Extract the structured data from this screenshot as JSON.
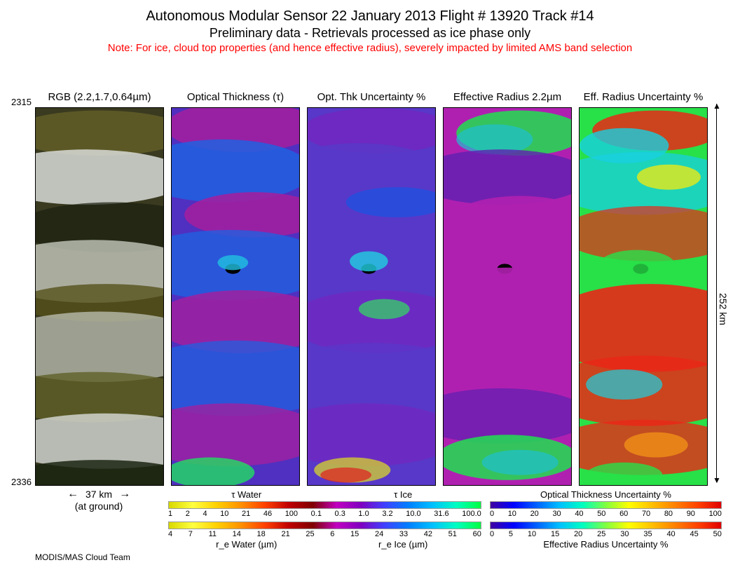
{
  "title": {
    "main": "Autonomous Modular Sensor  22 January 2013  Flight # 13920 Track #14",
    "sub": "Preliminary data - Retrievals processed as ice phase only",
    "note": "Note: For ice, cloud top properties (and hence effective radius), severely impacted by limited AMS band selection"
  },
  "y_axis": {
    "top_tick": "2315",
    "bottom_tick": "2336"
  },
  "width_scale": {
    "label": "37 km",
    "sublabel": "(at ground)"
  },
  "right_scale": {
    "label": "252 km"
  },
  "footer": "MODIS/MAS Cloud Team",
  "panels": [
    {
      "title": "RGB (2.2,1.7,0.64µm)"
    },
    {
      "title": "Optical Thickness (τ)"
    },
    {
      "title": "Opt. Thk Uncertainty %"
    },
    {
      "title": "Effective Radius 2.2µm"
    },
    {
      "title": "Eff. Radius Uncertainty %"
    }
  ],
  "colorbars": {
    "row1": {
      "left": {
        "title_left": "τ Water",
        "title_right": "τ Ice",
        "ticks": [
          "1",
          "2",
          "4",
          "10",
          "21",
          "46",
          "100",
          "0.1",
          "0.3",
          "1.0",
          "3.2",
          "10.0",
          "31.6",
          "100.0"
        ],
        "gradient": "linear-gradient(to right, #d8d800,#ffff40,#ffd000,#ff9000,#ff4000,#c00000,#800000,#c000c0,#8000c0,#4040ff,#0080ff,#00c0ff,#00ffc0,#00ff40)"
      },
      "right": {
        "title_full": "Optical Thickness Uncertainty %",
        "ticks": [
          "0",
          "10",
          "20",
          "30",
          "40",
          "50",
          "60",
          "70",
          "80",
          "90",
          "100"
        ],
        "gradient": "linear-gradient(to right, #4000a0,#0000ff,#0060ff,#00c0ff,#00ffc0,#80ff40,#ffff00,#ffc000,#ff8000,#ff4000,#e00000)"
      }
    },
    "row2": {
      "left": {
        "label_left": "r_e Water (µm)",
        "label_right": "r_e Ice (µm)",
        "ticks": [
          "4",
          "7",
          "11",
          "14",
          "18",
          "21",
          "25",
          "6",
          "15",
          "24",
          "33",
          "42",
          "51",
          "60"
        ],
        "gradient": "linear-gradient(to right, #d8d800,#ffff40,#ffd000,#ff9000,#ff4000,#c00000,#800000,#c000c0,#8000c0,#4040ff,#0080ff,#00c0ff,#00ffc0,#00ff40)"
      },
      "right": {
        "label_full": "Effective Radius Uncertainty %",
        "ticks": [
          "0",
          "5",
          "10",
          "15",
          "20",
          "25",
          "30",
          "35",
          "40",
          "45",
          "50"
        ],
        "gradient": "linear-gradient(to right, #4000a0,#0000ff,#0060ff,#00c0ff,#00ffc0,#80ff40,#ffff00,#ffc000,#ff8000,#ff4000,#e00000)"
      }
    }
  },
  "panel_colors": {
    "rgb": {
      "dark": "#1a2010",
      "olive": "#55501a",
      "lightcloud": "#d8dcd8",
      "shadow": "#303828"
    },
    "tau": {
      "low": "#a020a0",
      "mid": "#5030c0",
      "high": "#2060e0",
      "cyan": "#20c0e0",
      "green": "#20e060",
      "black": "#000000"
    },
    "unc": {
      "base": "#5838c8",
      "violet": "#7028c0",
      "blue": "#2050e0",
      "cyan": "#20d0e0",
      "green": "#30e060",
      "yellow": "#e0e020",
      "red": "#e02020",
      "black": "#000000"
    },
    "reff": {
      "mag": "#b020b0",
      "purple": "#6020b0",
      "blue": "#3040d0",
      "cyan": "#20c0d0",
      "green": "#20e050",
      "black": "#000000"
    },
    "runc": {
      "red": "#e82818",
      "orange": "#f09018",
      "yellow": "#e8e818",
      "green": "#28e048",
      "cyan": "#18d0e0",
      "blue": "#1860e0",
      "black": "#000000"
    }
  }
}
